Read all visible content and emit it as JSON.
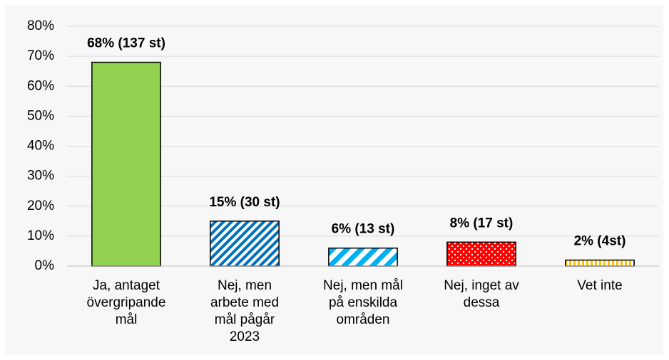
{
  "chart_data": {
    "type": "bar",
    "categories": [
      [
        "Ja, antaget",
        "övergripande",
        "mål"
      ],
      [
        "Nej, men",
        "arbete med",
        "mål pågår",
        "2023"
      ],
      [
        "Nej, men mål",
        "på enskilda",
        "områden"
      ],
      [
        "Nej, inget av",
        "dessa"
      ],
      [
        "Vet inte"
      ]
    ],
    "values": [
      68,
      15,
      6,
      8,
      2
    ],
    "value_labels": [
      "68% (137 st)",
      "15% (30 st)",
      "6% (13 st)",
      "8% (17 st)",
      "2% (4st)"
    ],
    "colors": [
      "#92d050",
      "#0070c0",
      "#00b0f0",
      "#ff0000",
      "#ffc000"
    ],
    "patterns": [
      "solid",
      "diagonal-dense",
      "diagonal-wide",
      "dots",
      "vertical"
    ],
    "ylim": [
      0,
      80
    ],
    "yticks": [
      {
        "value": 0,
        "label": "0%"
      },
      {
        "value": 10,
        "label": "10%"
      },
      {
        "value": 20,
        "label": "20%"
      },
      {
        "value": 30,
        "label": "30%"
      },
      {
        "value": 40,
        "label": "40%"
      },
      {
        "value": 50,
        "label": "50%"
      },
      {
        "value": 60,
        "label": "60%"
      },
      {
        "value": 70,
        "label": "70%"
      },
      {
        "value": 80,
        "label": "80%"
      }
    ],
    "grid": true
  }
}
